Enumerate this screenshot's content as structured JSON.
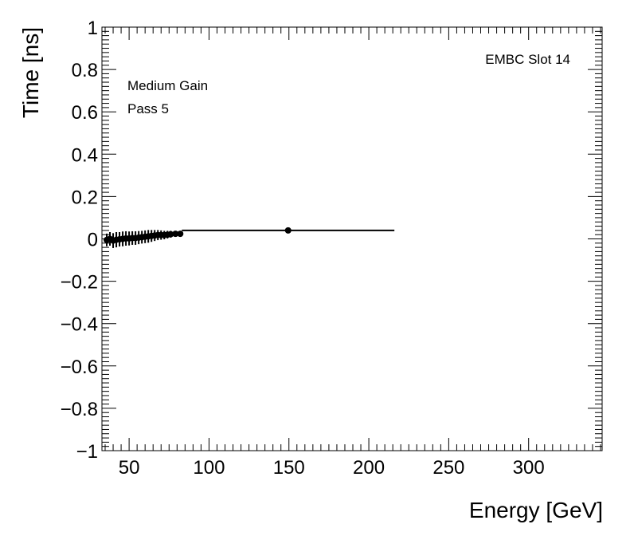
{
  "chart_data": {
    "type": "scatter",
    "title": "",
    "xlabel": "Energy [GeV]",
    "ylabel": "Time [ns]",
    "xlim": [
      33,
      346
    ],
    "ylim": [
      -1,
      1
    ],
    "xticks": [
      50,
      100,
      150,
      200,
      250,
      300
    ],
    "xtick_labels": [
      "50",
      "100",
      "150",
      "200",
      "250",
      "300"
    ],
    "yticks": [
      -1,
      -0.8,
      -0.6,
      -0.4,
      -0.2,
      0,
      0.2,
      0.4,
      0.6,
      0.8,
      1
    ],
    "ytick_labels": [
      "−1",
      "−0.8",
      "−0.6",
      "−0.4",
      "−0.2",
      "0",
      "0.2",
      "0.4",
      "0.6",
      "0.8",
      "1"
    ],
    "grid": false,
    "legend": "none",
    "annotations": {
      "top_right": "EMBC Slot 14",
      "top_left_line1": "Medium Gain",
      "top_left_line2": "Pass 5"
    },
    "marker_color": "#000000",
    "series": [
      {
        "points": [
          {
            "x": 36,
            "y": -0.005,
            "ey": 0.03,
            "ex": 1.0
          },
          {
            "x": 38,
            "y": 0.0,
            "ey": 0.032,
            "ex": 1.0
          },
          {
            "x": 40,
            "y": -0.008,
            "ey": 0.035,
            "ex": 1.0
          },
          {
            "x": 42,
            "y": -0.004,
            "ey": 0.036,
            "ex": 1.0
          },
          {
            "x": 44,
            "y": -0.002,
            "ey": 0.034,
            "ex": 1.0
          },
          {
            "x": 46,
            "y": 0.0,
            "ey": 0.035,
            "ex": 1.0
          },
          {
            "x": 48,
            "y": 0.002,
            "ey": 0.034,
            "ex": 1.0
          },
          {
            "x": 50,
            "y": 0.002,
            "ey": 0.033,
            "ex": 1.0
          },
          {
            "x": 52,
            "y": 0.004,
            "ey": 0.032,
            "ex": 1.0
          },
          {
            "x": 54,
            "y": 0.004,
            "ey": 0.032,
            "ex": 1.0
          },
          {
            "x": 56,
            "y": 0.006,
            "ey": 0.031,
            "ex": 1.0
          },
          {
            "x": 58,
            "y": 0.008,
            "ey": 0.03,
            "ex": 1.0
          },
          {
            "x": 60,
            "y": 0.01,
            "ey": 0.03,
            "ex": 1.0
          },
          {
            "x": 62,
            "y": 0.012,
            "ey": 0.03,
            "ex": 1.0
          },
          {
            "x": 64,
            "y": 0.014,
            "ey": 0.028,
            "ex": 1.0
          },
          {
            "x": 66,
            "y": 0.016,
            "ey": 0.026,
            "ex": 1.0
          },
          {
            "x": 68,
            "y": 0.018,
            "ey": 0.024,
            "ex": 1.0
          },
          {
            "x": 70,
            "y": 0.018,
            "ey": 0.022,
            "ex": 1.0
          },
          {
            "x": 72,
            "y": 0.018,
            "ey": 0.02,
            "ex": 1.0
          },
          {
            "x": 74,
            "y": 0.02,
            "ey": 0.018,
            "ex": 1.0
          },
          {
            "x": 76,
            "y": 0.022,
            "ey": 0.016,
            "ex": 1.0
          },
          {
            "x": 79,
            "y": 0.024,
            "ey": 0.01,
            "ex": 1.5
          },
          {
            "x": 82,
            "y": 0.024,
            "ey": 0.006,
            "ex": 1.5
          },
          {
            "x": 149.5,
            "y": 0.04,
            "ey": 0.0,
            "ex": 66.5
          }
        ]
      }
    ]
  }
}
